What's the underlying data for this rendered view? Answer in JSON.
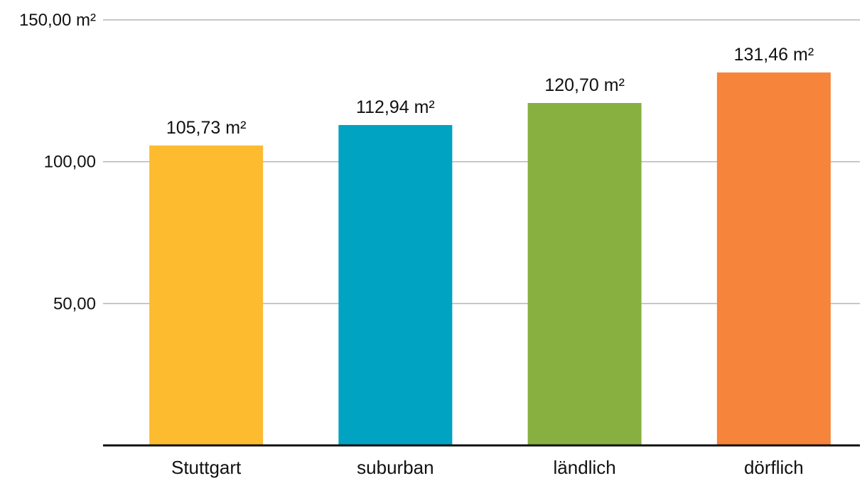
{
  "chart_data": {
    "type": "bar",
    "categories": [
      "Stuttgart",
      "suburban",
      "ländlich",
      "dörflich"
    ],
    "values": [
      105.73,
      112.94,
      120.7,
      131.46
    ],
    "value_labels": [
      "105,73 m²",
      "112,94 m²",
      "120,70 m²",
      "131,46 m²"
    ],
    "colors": [
      "#fdbb30",
      "#00a3c1",
      "#87b040",
      "#f6843a"
    ],
    "ylim": [
      0,
      150
    ],
    "yticks": [
      50,
      100,
      150
    ],
    "ytick_labels": [
      "50,00",
      "100,00",
      "150,00 m²"
    ],
    "grid": true,
    "title": "",
    "xlabel": "",
    "ylabel": ""
  }
}
